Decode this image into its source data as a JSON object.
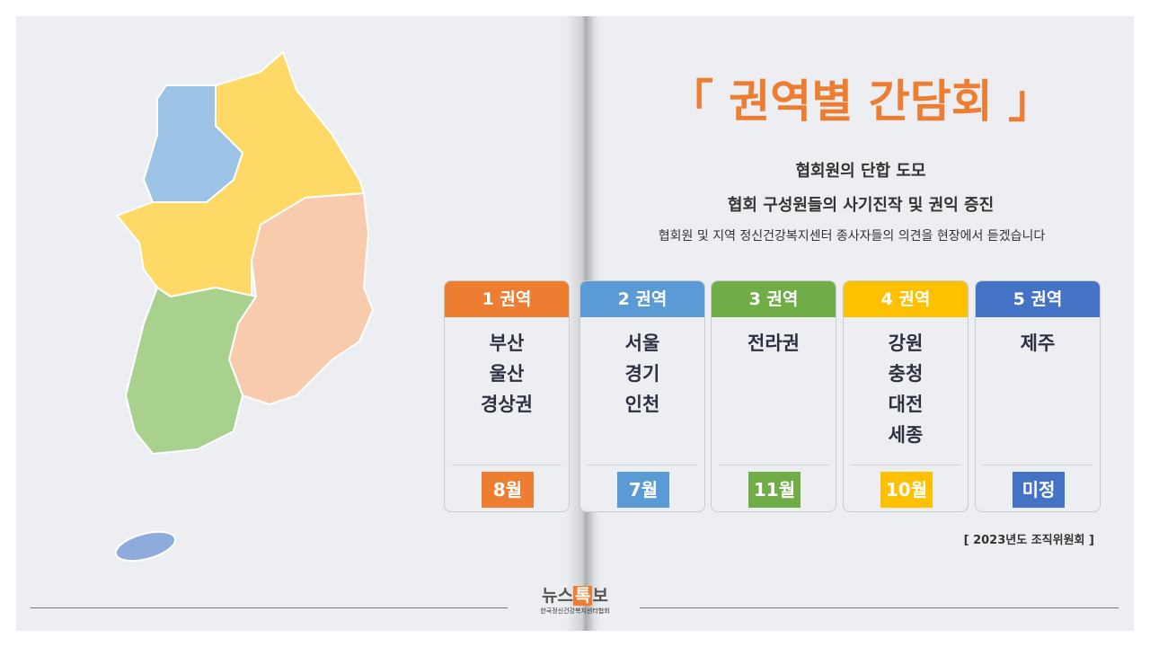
{
  "header": {
    "title": "「 권역별 간담회 」",
    "subtitle_lines": [
      "협회원의 단합 도모",
      "협회 구성원들의 사기진작 및 권익 증진"
    ],
    "description": "협회원 및 지역 정신건강복지센터 종사자들의 의견을 현장에서 듣겠습니다"
  },
  "regions": [
    {
      "label": "1 권역",
      "areas": [
        "부산",
        "울산",
        "경상권"
      ],
      "month": "8월",
      "color": "#ed7d31"
    },
    {
      "label": "2 권역",
      "areas": [
        "서울",
        "경기",
        "인천"
      ],
      "month": "7월",
      "color": "#5b9bd5"
    },
    {
      "label": "3 권역",
      "areas": [
        "전라권"
      ],
      "month": "11월",
      "color": "#70ad47"
    },
    {
      "label": "4 권역",
      "areas": [
        "강원",
        "충청",
        "대전",
        "세종"
      ],
      "month": "10월",
      "color": "#ffc000"
    },
    {
      "label": "5 권역",
      "areas": [
        "제주"
      ],
      "month": "미정",
      "color": "#4472c4"
    }
  ],
  "note": "[ 2023년도 조직위원회 ]",
  "logo": {
    "part1": "뉴스",
    "highlight": "톡",
    "part2": "보",
    "org": "한국정신건강복지센터협회"
  }
}
